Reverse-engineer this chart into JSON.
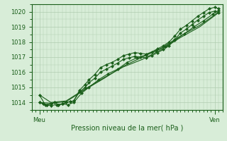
{
  "title": "",
  "xlabel": "Pression niveau de la mer( hPa )",
  "xlim": [
    0,
    1
  ],
  "ylim": [
    1013.5,
    1020.5
  ],
  "yticks": [
    1014,
    1015,
    1016,
    1017,
    1018,
    1019,
    1020
  ],
  "xtick_labels": [
    "Meu",
    "Ven"
  ],
  "xtick_positions": [
    0.04,
    0.96
  ],
  "bg_color": "#d8edd8",
  "grid_color": "#b0ccb0",
  "line_color": "#1a5e1a",
  "marker_color": "#1a5e1a",
  "series1_x": [
    0.04,
    0.06,
    0.08,
    0.1,
    0.12,
    0.14,
    0.16,
    0.18,
    0.2,
    0.22,
    0.25,
    0.28,
    0.3,
    0.33,
    0.36,
    0.39,
    0.42,
    0.45,
    0.48,
    0.51,
    0.54,
    0.57,
    0.6,
    0.63,
    0.66,
    0.69,
    0.72,
    0.75,
    0.78,
    0.81,
    0.84,
    0.87,
    0.9,
    0.93,
    0.96,
    0.98
  ],
  "series1_y": [
    1014.0,
    1013.9,
    1013.85,
    1013.9,
    1014.0,
    1013.85,
    1013.9,
    1014.0,
    1014.05,
    1014.1,
    1014.8,
    1015.2,
    1015.5,
    1015.85,
    1016.3,
    1016.5,
    1016.65,
    1016.85,
    1017.1,
    1017.2,
    1017.3,
    1017.25,
    1017.2,
    1017.35,
    1017.55,
    1017.75,
    1018.0,
    1018.4,
    1018.85,
    1019.1,
    1019.4,
    1019.7,
    1019.95,
    1020.2,
    1020.3,
    1020.2
  ],
  "series2_x": [
    0.04,
    0.06,
    0.08,
    0.1,
    0.12,
    0.14,
    0.16,
    0.18,
    0.2,
    0.22,
    0.25,
    0.28,
    0.3,
    0.33,
    0.36,
    0.39,
    0.42,
    0.45,
    0.48,
    0.51,
    0.54,
    0.57,
    0.6,
    0.63,
    0.66,
    0.69,
    0.72,
    0.75,
    0.78,
    0.81,
    0.84,
    0.87,
    0.9,
    0.93,
    0.96,
    0.98
  ],
  "series2_y": [
    1014.0,
    1013.9,
    1013.85,
    1013.9,
    1014.0,
    1013.85,
    1013.9,
    1014.0,
    1014.05,
    1014.1,
    1014.7,
    1015.0,
    1015.3,
    1015.6,
    1016.0,
    1016.2,
    1016.4,
    1016.6,
    1016.85,
    1016.95,
    1017.05,
    1017.0,
    1016.95,
    1017.1,
    1017.3,
    1017.5,
    1017.75,
    1018.15,
    1018.6,
    1018.85,
    1019.15,
    1019.45,
    1019.7,
    1019.95,
    1020.05,
    1019.95
  ],
  "series3_x": [
    0.04,
    0.1,
    0.18,
    0.28,
    0.38,
    0.48,
    0.58,
    0.68,
    0.78,
    0.88,
    0.96,
    0.98
  ],
  "series3_y": [
    1014.0,
    1013.95,
    1014.05,
    1014.85,
    1015.6,
    1016.4,
    1017.0,
    1017.6,
    1018.4,
    1019.1,
    1019.8,
    1020.0
  ],
  "series4_x": [
    0.04,
    0.1,
    0.18,
    0.28,
    0.38,
    0.48,
    0.58,
    0.68,
    0.78,
    0.88,
    0.96,
    0.98
  ],
  "series4_y": [
    1014.5,
    1014.0,
    1014.1,
    1014.9,
    1015.65,
    1016.35,
    1016.85,
    1017.5,
    1018.3,
    1019.0,
    1019.75,
    1019.95
  ],
  "series5_x": [
    0.04,
    0.07,
    0.1,
    0.13,
    0.16,
    0.19,
    0.22,
    0.26,
    0.3,
    0.35,
    0.4,
    0.45,
    0.5,
    0.55,
    0.6,
    0.65,
    0.7,
    0.75,
    0.8,
    0.85,
    0.9,
    0.95,
    0.98
  ],
  "series5_y": [
    1014.5,
    1013.85,
    1013.8,
    1013.85,
    1013.9,
    1013.85,
    1014.0,
    1014.6,
    1015.0,
    1015.5,
    1015.9,
    1016.2,
    1016.65,
    1016.95,
    1017.15,
    1017.4,
    1017.7,
    1018.1,
    1018.55,
    1019.0,
    1019.4,
    1019.85,
    1020.1
  ]
}
